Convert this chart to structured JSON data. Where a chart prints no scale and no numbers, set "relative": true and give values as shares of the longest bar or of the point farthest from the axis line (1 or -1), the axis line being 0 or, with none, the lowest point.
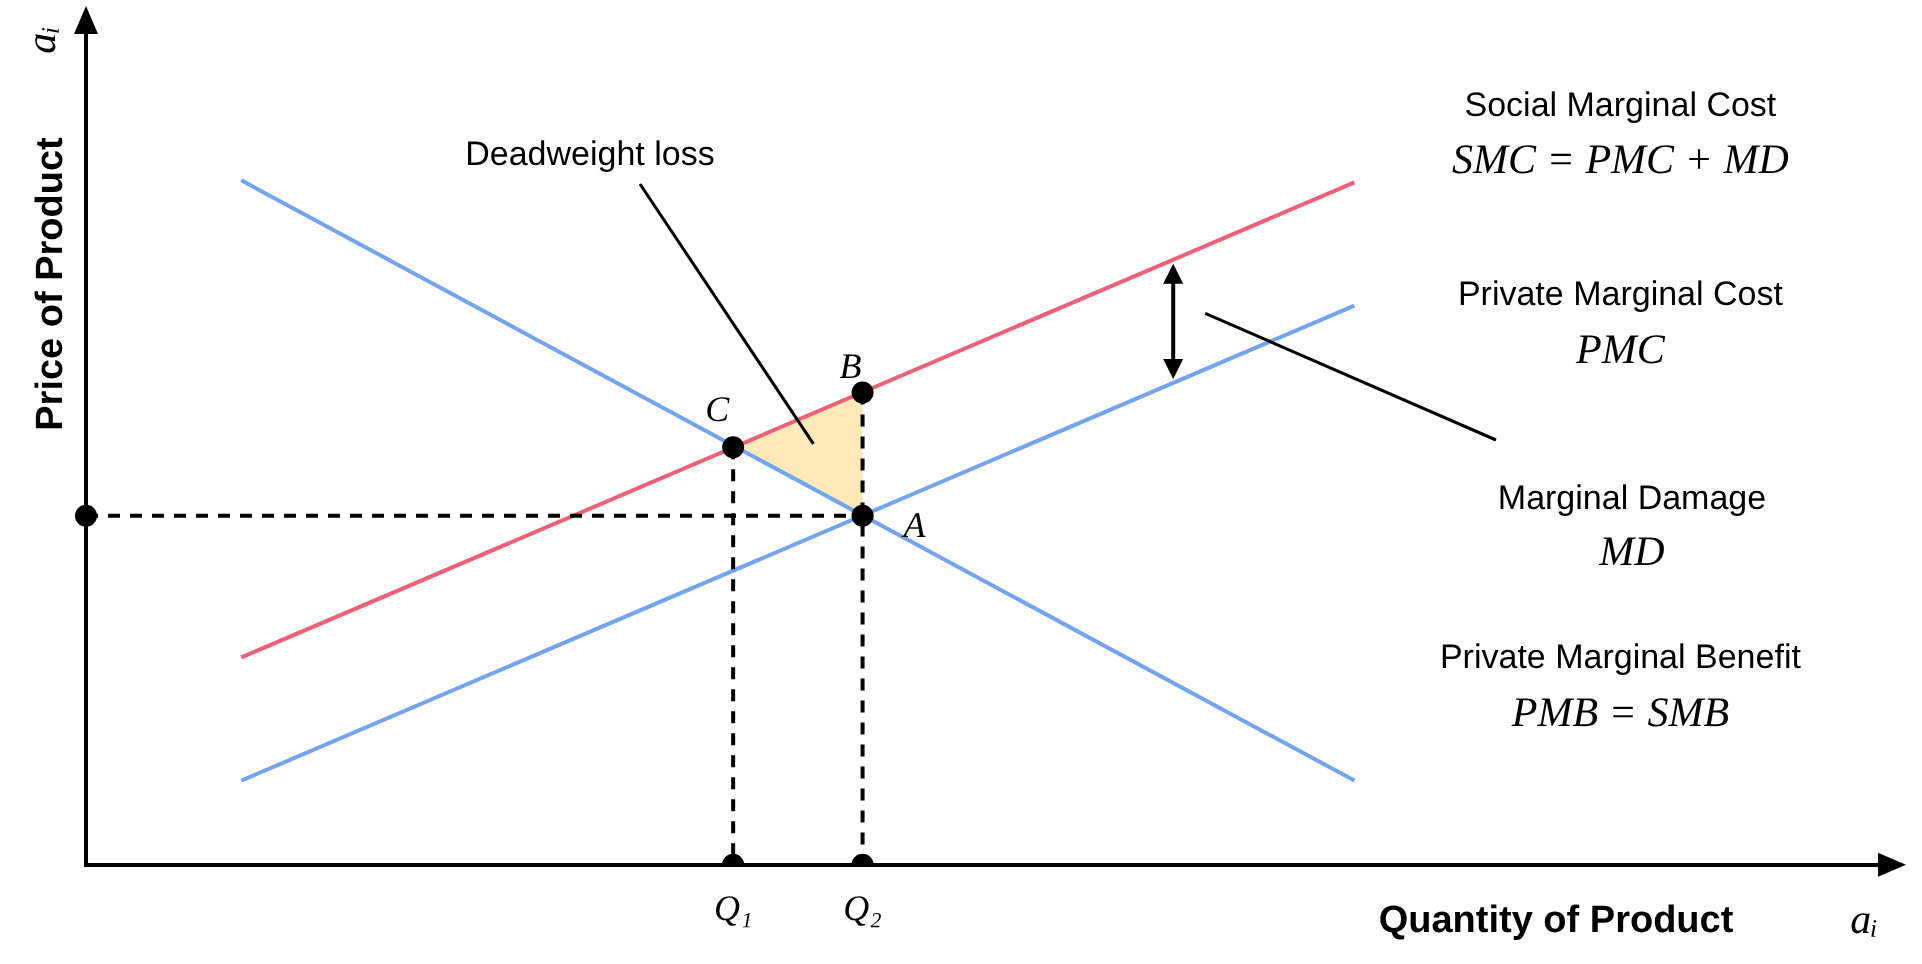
{
  "chart_data": {
    "type": "line",
    "relative": true,
    "xlabel": "Quantity of Product",
    "ylabel": "Price of Product",
    "legend": false,
    "grid": false,
    "marker": "none",
    "line_style": "solid",
    "categories": [
      null,
      null,
      null,
      null,
      null,
      null,
      null,
      null,
      null,
      null,
      null,
      null,
      null,
      null,
      null,
      null,
      null,
      null,
      null,
      null,
      null,
      null,
      null,
      null,
      null,
      "Q₁",
      null,
      null,
      null,
      null,
      "Q₂",
      null,
      null,
      null,
      null,
      null,
      null,
      null,
      null,
      null,
      null,
      null,
      null,
      null,
      null,
      null,
      null,
      null,
      null,
      null,
      null,
      null,
      null,
      null,
      null,
      null,
      null,
      null,
      null,
      null,
      null,
      null,
      null,
      null,
      null,
      null,
      null,
      null,
      null,
      null,
      null
    ],
    "series": [
      {
        "name": "Social Marginal Cost",
        "color": "#ee6077",
        "values": [
          null,
          null,
          null,
          null,
          null,
          null,
          0.303,
          null,
          null,
          null,
          null,
          null,
          null,
          null,
          null,
          null,
          null,
          null,
          null,
          null,
          null,
          null,
          null,
          null,
          null,
          null,
          null,
          null,
          null,
          null,
          null,
          null,
          null,
          null,
          null,
          null,
          null,
          null,
          null,
          null,
          null,
          null,
          null,
          null,
          null,
          null,
          null,
          null,
          null,
          0.997,
          null,
          null,
          null,
          null,
          null,
          null,
          null,
          null,
          null,
          null,
          null,
          null,
          null,
          null,
          null,
          null,
          null,
          null,
          null,
          null,
          null
        ]
      },
      {
        "name": "Private Marginal Cost",
        "color": "#74a4f0",
        "values": [
          null,
          null,
          null,
          null,
          null,
          null,
          0.123,
          null,
          null,
          null,
          null,
          null,
          null,
          null,
          null,
          null,
          null,
          null,
          null,
          null,
          null,
          null,
          null,
          null,
          null,
          null,
          null,
          null,
          null,
          null,
          null,
          null,
          null,
          null,
          null,
          null,
          null,
          null,
          null,
          null,
          null,
          null,
          null,
          null,
          null,
          null,
          null,
          null,
          null,
          0.817,
          null,
          null,
          null,
          null,
          null,
          null,
          null,
          null,
          null,
          null,
          null,
          null,
          null,
          null,
          null,
          null,
          null,
          null,
          null,
          null,
          null
        ]
      },
      {
        "name": "Private Marginal Benefit",
        "color": "#74a4f0",
        "values": [
          null,
          null,
          null,
          null,
          null,
          null,
          1.0,
          null,
          null,
          null,
          null,
          null,
          null,
          null,
          null,
          null,
          null,
          null,
          null,
          null,
          null,
          null,
          null,
          null,
          null,
          null,
          null,
          null,
          null,
          null,
          null,
          null,
          null,
          null,
          null,
          null,
          null,
          null,
          null,
          null,
          null,
          null,
          null,
          null,
          null,
          null,
          null,
          null,
          null,
          0.123,
          null,
          null,
          null,
          null,
          null,
          null,
          null,
          null,
          null,
          null,
          null,
          null,
          null,
          null,
          null,
          null,
          null,
          null,
          null,
          null,
          null
        ]
      },
      {
        "type": "line",
        "color": "#000000",
        "line_style": "dashed",
        "marker": "circle",
        "values": [
          0.51,
          null,
          null,
          null,
          null,
          null,
          null,
          null,
          null,
          null,
          null,
          null,
          null,
          null,
          null,
          null,
          null,
          null,
          null,
          null,
          null,
          null,
          null,
          null,
          null,
          null,
          null,
          null,
          null,
          null,
          0.51,
          null,
          null,
          null,
          null,
          null,
          null,
          null,
          null,
          null,
          null,
          null,
          null,
          null,
          null,
          null,
          null,
          null,
          null,
          null,
          null,
          null,
          null,
          null,
          null,
          null,
          null,
          null,
          null,
          null,
          null,
          null,
          null,
          null,
          null,
          null,
          null,
          null,
          null,
          null,
          null
        ]
      },
      {
        "type": "scatter",
        "color": "#000000",
        "marker": "circle",
        "values": [
          null,
          null,
          null,
          null,
          null,
          null,
          null,
          null,
          null,
          null,
          null,
          null,
          null,
          null,
          null,
          null,
          null,
          null,
          null,
          null,
          null,
          null,
          null,
          null,
          null,
          0.61,
          null,
          null,
          null,
          null,
          0.69,
          null,
          null,
          null,
          null,
          null,
          null,
          null,
          null,
          null,
          null,
          null,
          null,
          null,
          null,
          null,
          null,
          null,
          null,
          null,
          null,
          null,
          null,
          null,
          null,
          null,
          null,
          null,
          null,
          null,
          null,
          null,
          null,
          null,
          null,
          null,
          null,
          null,
          null,
          null,
          null
        ]
      },
      {
        "type": "scatter",
        "color": "#000000",
        "marker": "circle",
        "values": [
          null,
          null,
          null,
          null,
          null,
          null,
          null,
          null,
          null,
          null,
          null,
          null,
          null,
          null,
          null,
          null,
          null,
          null,
          null,
          null,
          null,
          null,
          null,
          null,
          null,
          0,
          null,
          null,
          null,
          null,
          0,
          null,
          null,
          null,
          null,
          null,
          null,
          null,
          null,
          null,
          null,
          null,
          null,
          null,
          null,
          null,
          null,
          null,
          null,
          null,
          null,
          null,
          null,
          null,
          null,
          null,
          null,
          null,
          null,
          null,
          null,
          null,
          null,
          null,
          null,
          null,
          null,
          null,
          null,
          null,
          null
        ]
      }
    ],
    "annotations": [
      "SMC = PMC + MD",
      "PMC",
      "Marginal Damage",
      "MD",
      "PMB = SMB",
      "Deadweight loss",
      {
        "text": "C",
        "x": "Q₁",
        "y": 0.61
      },
      {
        "text": "B",
        "x": "Q₂",
        "y": 0.69
      },
      {
        "text": "A",
        "x": "Q₂",
        "y": 0.51
      },
      "aᵢ",
      "aᵢ"
    ]
  }
}
